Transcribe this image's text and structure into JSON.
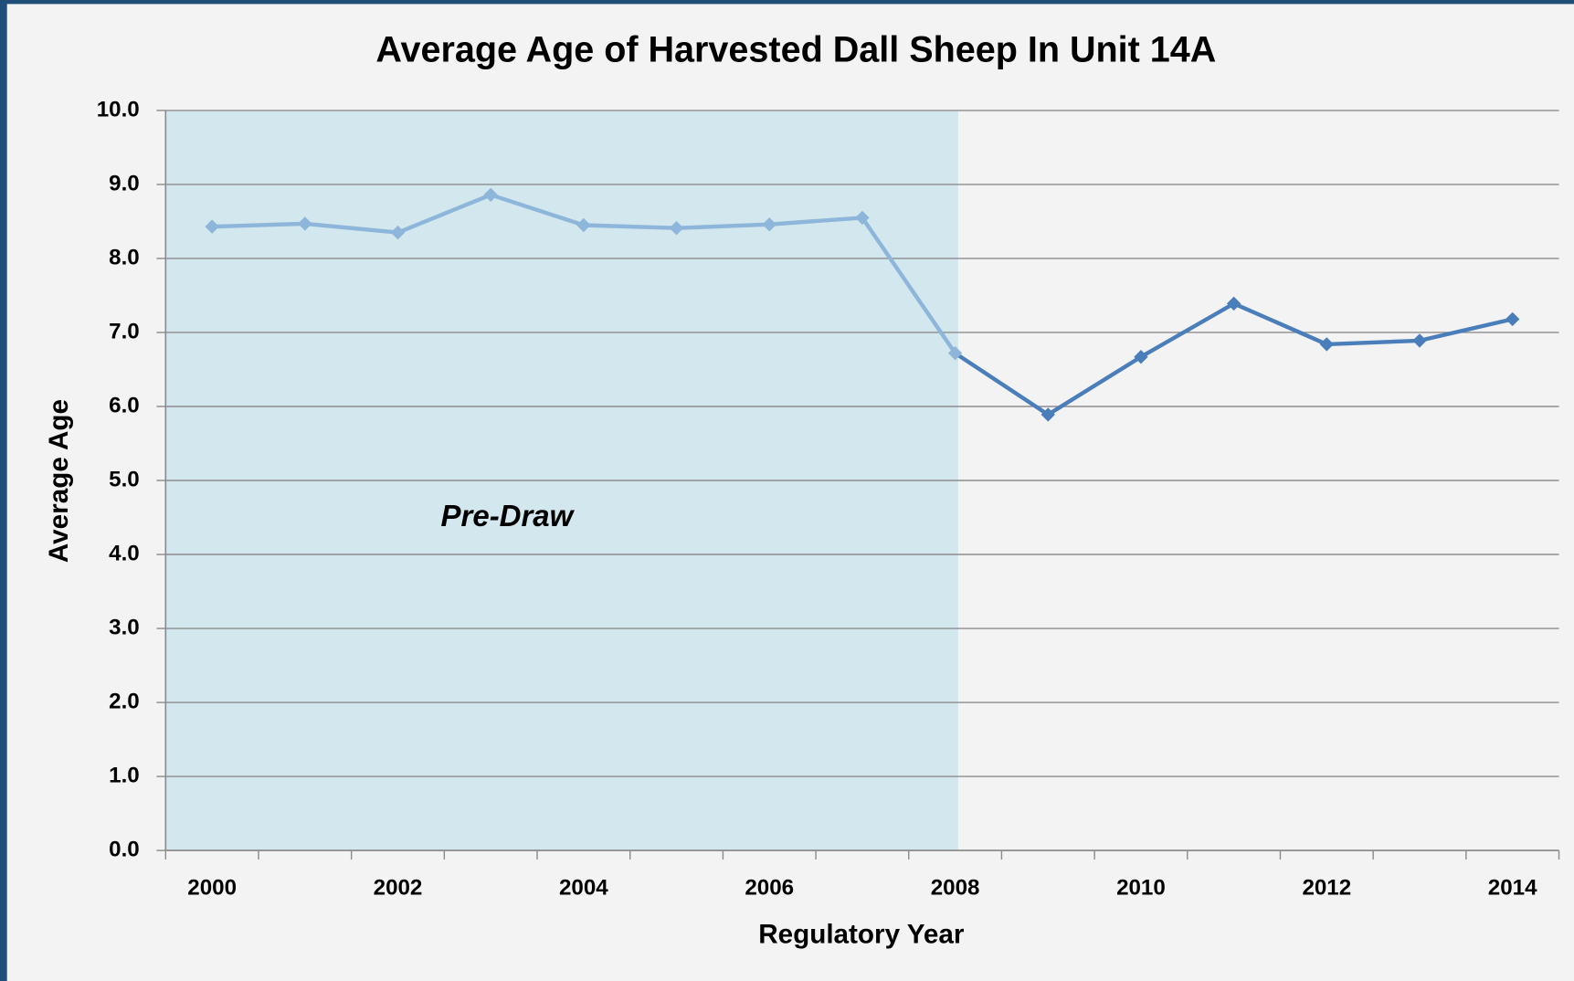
{
  "chart_data": {
    "type": "line",
    "title": "Average Age of Harvested Dall Sheep In Unit 14A",
    "x_label": "Regulatory  Year",
    "y_label": "Average Age",
    "categories": [
      "2000",
      null,
      "2002",
      null,
      "2004",
      null,
      "2006",
      null,
      "2008",
      null,
      "2010",
      null,
      "2012",
      null,
      "2014"
    ],
    "series": [
      {
        "name": "Average Age",
        "color": "#4a7ebb",
        "values": [
          8.43,
          8.47,
          8.35,
          8.86,
          8.45,
          8.41,
          8.46,
          8.55,
          6.72,
          5.89,
          6.67,
          7.39,
          6.84,
          6.89,
          7.18
        ]
      }
    ],
    "ylim": [
      0,
      10
    ],
    "yticks": [
      {
        "value": 0,
        "label": "0.0"
      },
      {
        "value": 1,
        "label": "1.0"
      },
      {
        "value": 2,
        "label": "2.0"
      },
      {
        "value": 3,
        "label": "3.0"
      },
      {
        "value": 4,
        "label": "4.0"
      },
      {
        "value": 5,
        "label": "5.0"
      },
      {
        "value": 6,
        "label": "6.0"
      },
      {
        "value": 7,
        "label": "7.0"
      },
      {
        "value": 8,
        "label": "8.0"
      },
      {
        "value": 9,
        "label": "9.0"
      },
      {
        "value": 10,
        "label": "10.0"
      }
    ],
    "grid": true,
    "shade": {
      "label": "Pre-Draw",
      "color": "#d3e7ee",
      "line_color": "#8db6da",
      "last_index": 8
    }
  }
}
